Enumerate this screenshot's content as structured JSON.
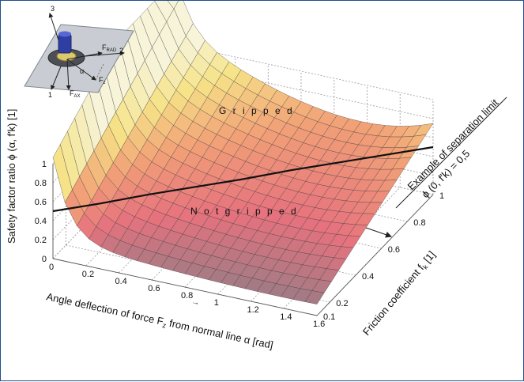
{
  "chart_data": {
    "type": "surface3d",
    "xlabel_parts": [
      "Angle deflection of force F",
      "z",
      " from normal line α [rad]"
    ],
    "ylabel_parts": [
      "Friction coefficient f",
      "k",
      " [1]"
    ],
    "zlabel": "Safety factor ratio ϕ (α, f′k) [1]",
    "x_ticks": [
      "0",
      "0.2",
      "0.4",
      "0.6",
      "0.8",
      "1",
      "1.2",
      "1.4",
      "1.6"
    ],
    "y_ticks": [
      "0.1",
      "0.2",
      "0.4",
      "0.6",
      "0.8",
      "1"
    ],
    "z_ticks": [
      "0",
      "0.2",
      "0.4",
      "0.6",
      "0.8",
      "1"
    ],
    "xlim": [
      0,
      1.6
    ],
    "ylim": [
      0.1,
      1.0
    ],
    "zlim": [
      0,
      1
    ],
    "regions": {
      "upper": "G r i p p e d",
      "lower": "N o t  g r i p p e d"
    },
    "annotation_lines": [
      "Example of separation limit",
      "ϕ (0, f′k) = 0,5"
    ],
    "separation_curve": {
      "x": [
        0.0,
        0.2,
        0.4,
        0.6,
        0.8,
        1.0,
        1.2,
        1.4,
        1.6
      ],
      "y": [
        0.1,
        0.21,
        0.33,
        0.44,
        0.55,
        0.67,
        0.78,
        0.89,
        1.0
      ],
      "z": [
        0.5,
        0.5,
        0.5,
        0.5,
        0.5,
        0.5,
        0.5,
        0.5,
        0.5
      ]
    },
    "colormap": [
      "#8a7e86",
      "#e6727e",
      "#f2a277",
      "#f6e388",
      "#f7f4d9"
    ],
    "grid": true
  },
  "inset": {
    "axis_labels": [
      "1",
      "2",
      "3"
    ],
    "force_labels": [
      "F_RAD",
      "F_z",
      "F_AX",
      "α"
    ]
  }
}
